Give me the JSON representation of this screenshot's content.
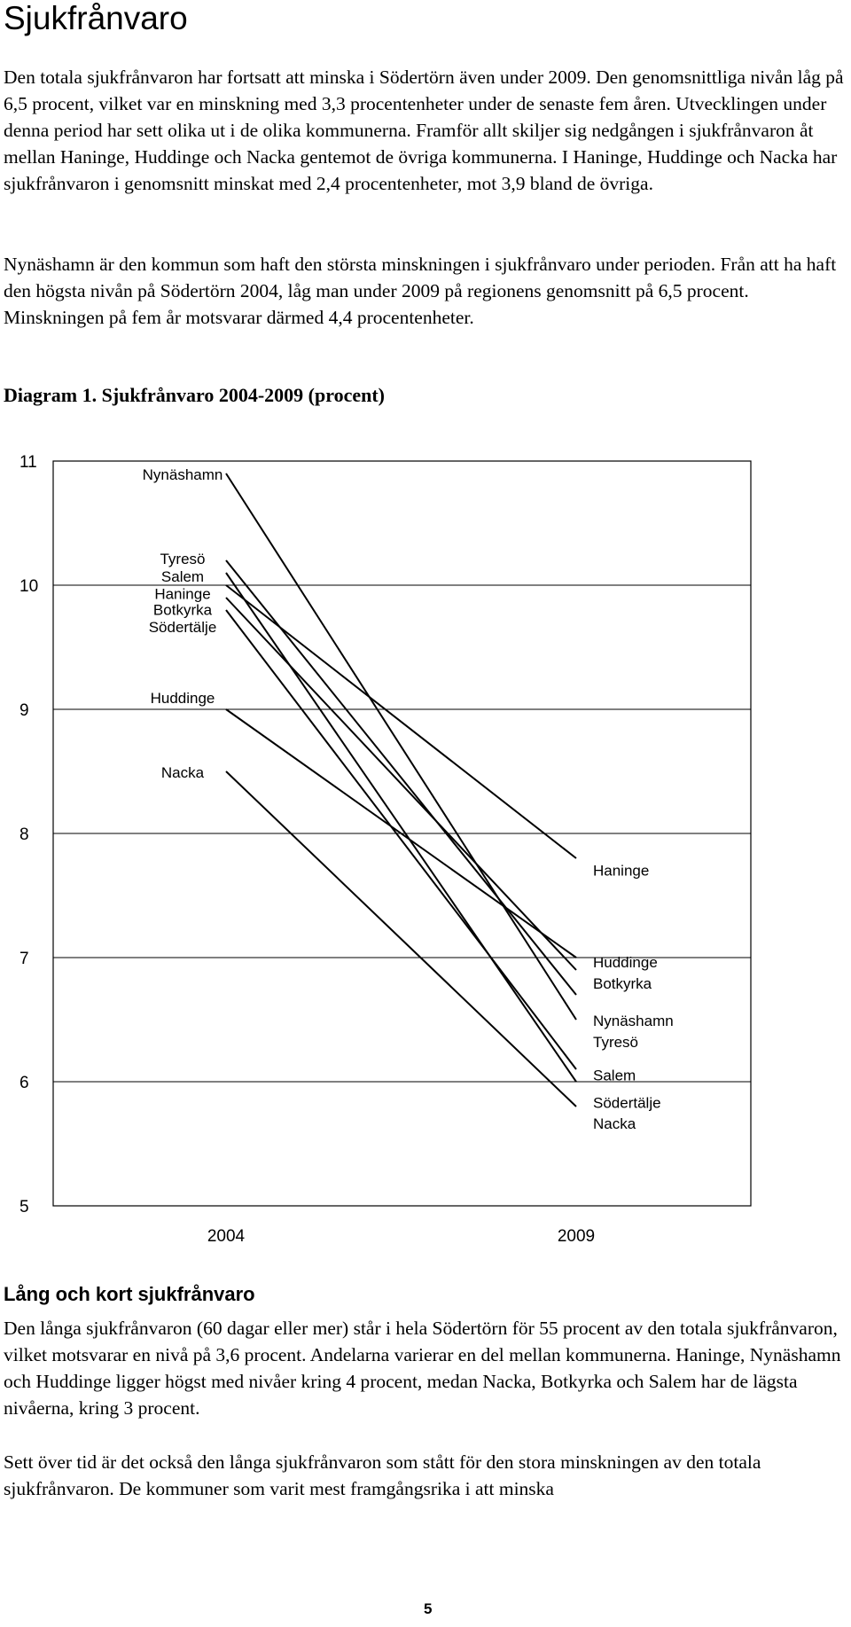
{
  "page": {
    "heading": "Sjukfrånvaro",
    "intro": "Den totala sjukfrånvaron har fortsatt att minska i Södertörn även under 2009. Den genomsnittliga nivån låg på 6,5 procent, vilket var en minskning med 3,3 procentenheter under de senaste fem åren. Utvecklingen under denna period har sett olika ut i de olika kommunerna. Framför allt skiljer sig nedgången i sjukfrånvaron åt mellan Haninge, Huddinge och Nacka gentemot de övriga kommunerna. I Haninge, Huddinge och Nacka har sjukfrånvaron i genomsnitt minskat med 2,4 procentenheter, mot 3,9 bland de övriga.",
    "para2": "Nynäshamn är den kommun som haft den största minskningen i sjukfrånvaro under perioden. Från att ha haft den högsta nivån på Södertörn 2004, låg man under 2009 på regionens genomsnitt på 6,5 procent. Minskningen på fem år motsvarar därmed 4,4 procentenheter.",
    "diagram_title": "Diagram 1. Sjukfrånvaro 2004-2009 (procent)",
    "subheading": "Lång och kort sjukfrånvaro",
    "para3": "Den långa sjukfrånvaron (60 dagar eller mer) står i hela Södertörn för 55 procent av den totala sjukfrånvaron, vilket motsvarar en nivå på 3,6 procent. Andelarna varierar en del mellan kommunerna. Haninge, Nynäshamn och Huddinge ligger högst med nivåer kring 4 procent, medan Nacka, Botkyrka och Salem har de lägsta nivåerna, kring 3 procent.",
    "para4": "Sett över tid är det också den långa sjukfrånvaron som stått för den stora minskningen av den totala sjukfrånvaron. De kommuner som varit mest framgångsrika i att minska",
    "page_number": "5"
  },
  "chart_data": {
    "type": "line",
    "x": [
      "2004",
      "2009"
    ],
    "ylim": [
      5,
      11
    ],
    "yticks": [
      "11",
      "10",
      "9",
      "8",
      "7",
      "6",
      "5"
    ],
    "grid": true,
    "series": [
      {
        "name": "Nynäshamn",
        "values": [
          10.9,
          6.5
        ]
      },
      {
        "name": "Tyresö",
        "values": [
          10.2,
          6.7
        ]
      },
      {
        "name": "Salem",
        "values": [
          10.1,
          6.0
        ]
      },
      {
        "name": "Haninge",
        "values": [
          10.0,
          7.8
        ]
      },
      {
        "name": "Botkyrka",
        "values": [
          9.9,
          6.9
        ]
      },
      {
        "name": "Södertälje",
        "values": [
          9.8,
          6.1
        ]
      },
      {
        "name": "Huddinge",
        "values": [
          9.0,
          7.0
        ]
      },
      {
        "name": "Nacka",
        "values": [
          8.5,
          5.8
        ]
      }
    ],
    "left_labels": [
      {
        "text": "Nynäshamn",
        "value": 10.9
      },
      {
        "text": "Tyresö",
        "value": 10.22
      },
      {
        "text": "Salem",
        "value": 10.08
      },
      {
        "text": "Haninge",
        "value": 9.94
      },
      {
        "text": "Botkyrka",
        "value": 9.81
      },
      {
        "text": "Södertälje",
        "value": 9.67
      },
      {
        "text": "Huddinge",
        "value": 9.1
      },
      {
        "text": "Nacka",
        "value": 8.5
      }
    ],
    "right_labels": [
      {
        "text": "Haninge",
        "value": 7.71
      },
      {
        "text": "Huddinge",
        "value": 6.97
      },
      {
        "text": "Botkyrka",
        "value": 6.8
      },
      {
        "text": "Nynäshamn",
        "value": 6.5
      },
      {
        "text": "Tyresö",
        "value": 6.33
      },
      {
        "text": "Salem",
        "value": 6.06
      },
      {
        "text": "Södertälje",
        "value": 5.84
      },
      {
        "text": "Nacka",
        "value": 5.67
      }
    ]
  }
}
